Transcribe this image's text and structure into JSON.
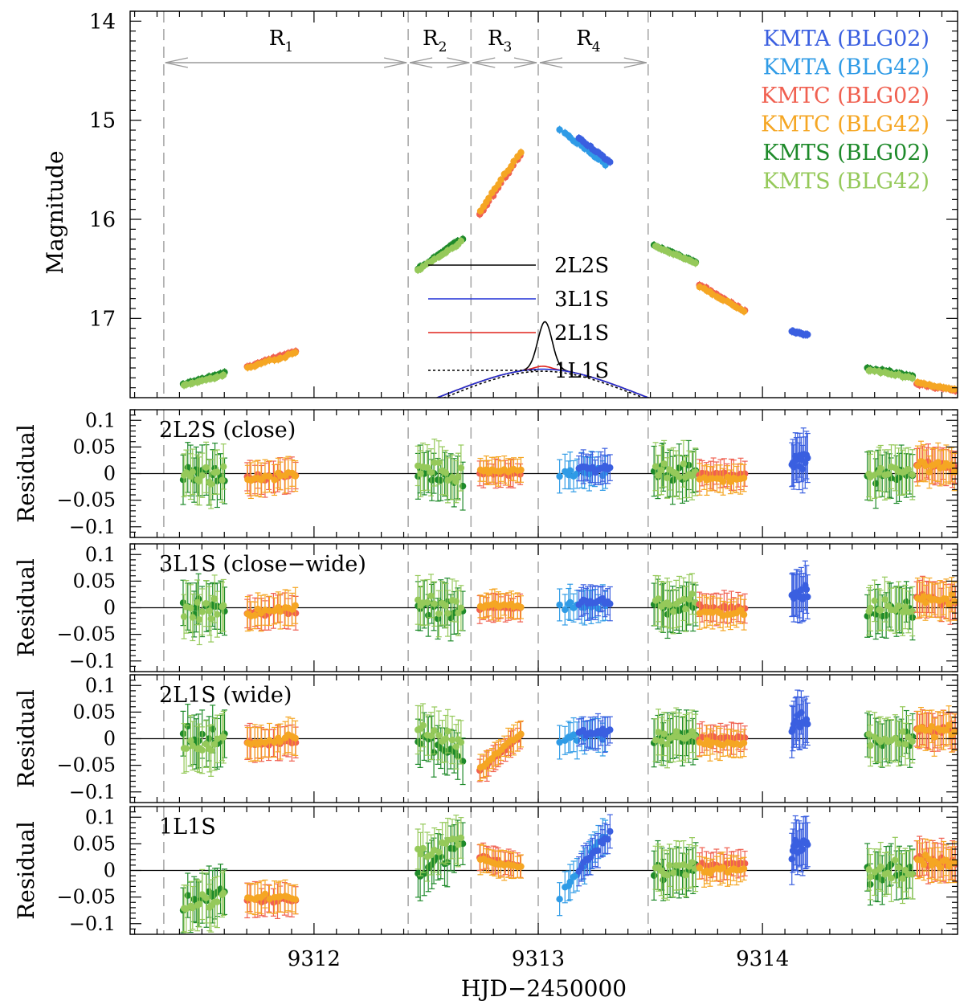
{
  "chart_data": {
    "type": "scatter",
    "xlabel": "HJD−2450000",
    "x_ticks": [
      "9312",
      "9313",
      "9314"
    ],
    "xlim": [
      9311.18,
      9314.87
    ],
    "top_panel": {
      "ylabel": "Magnitude",
      "ylim": [
        13.9,
        17.8
      ],
      "y_ticks": [
        "14",
        "15",
        "16",
        "17"
      ],
      "regions": [
        {
          "label": "R",
          "sub": "1",
          "start": 9311.33,
          "end": 9312.42
        },
        {
          "label": "R",
          "sub": "2",
          "start": 9312.42,
          "end": 9312.7
        },
        {
          "label": "R",
          "sub": "3",
          "start": 9312.7,
          "end": 9313.0
        },
        {
          "label": "R",
          "sub": "4",
          "start": 9313.0,
          "end": 9313.49
        }
      ],
      "boundaries": [
        9311.33,
        9312.42,
        9312.7,
        9313.0,
        9313.49
      ],
      "legend_datasets": [
        {
          "name": "KMTA (BLG02)",
          "color": "#3a5fe0"
        },
        {
          "name": "KMTA (BLG42)",
          "color": "#2f9be6"
        },
        {
          "name": "KMTC (BLG02)",
          "color": "#f06050"
        },
        {
          "name": "KMTC (BLG42)",
          "color": "#f5a623"
        },
        {
          "name": "KMTS (BLG02)",
          "color": "#1e8a2a"
        },
        {
          "name": "KMTS (BLG42)",
          "color": "#95c95a"
        }
      ],
      "models": [
        {
          "name": "2L2S",
          "color": "#000000",
          "dash": "solid"
        },
        {
          "name": "3L1S",
          "color": "#1f2fd6",
          "dash": "solid"
        },
        {
          "name": "2L1S",
          "color": "#e0241c",
          "dash": "solid"
        },
        {
          "name": "1L1S",
          "color": "#000000",
          "dash": "dotted"
        }
      ]
    },
    "residual_panels": [
      {
        "label": "2L2S (close)",
        "ylabel": "Residual",
        "ylim": [
          -0.12,
          0.12
        ],
        "y_ticks": [
          "0.1",
          "0.05",
          "0",
          "−0.05",
          "−0.1"
        ]
      },
      {
        "label": "3L1S (close−wide)",
        "ylabel": "Residual",
        "ylim": [
          -0.12,
          0.12
        ],
        "y_ticks": [
          "0.1",
          "0.05",
          "0",
          "−0.05",
          "−0.1"
        ]
      },
      {
        "label": "2L1S (wide)",
        "ylabel": "Residual",
        "ylim": [
          -0.12,
          0.12
        ],
        "y_ticks": [
          "0.1",
          "0.05",
          "0",
          "−0.05",
          "−0.1"
        ]
      },
      {
        "label": "1L1S",
        "ylabel": "Residual",
        "ylim": [
          -0.12,
          0.12
        ],
        "y_ticks": [
          "0.1",
          "0.05",
          "0",
          "−0.05",
          "−0.1"
        ]
      }
    ],
    "observation_groups": [
      {
        "dataset": 4,
        "x": [
          9311.42,
          9311.6
        ],
        "mag": [
          17.66,
          17.55
        ],
        "res": [
          0.0,
          0.0,
          0.0,
          -0.06
        ],
        "res_end": [
          0.0,
          0.0,
          0.0,
          -0.04
        ],
        "scatter": 0.026
      },
      {
        "dataset": 5,
        "x": [
          9311.42,
          9311.6
        ],
        "mag": [
          17.68,
          17.57
        ],
        "res": [
          -0.01,
          -0.01,
          -0.02,
          -0.07
        ],
        "res_end": [
          0.0,
          0.0,
          0.0,
          -0.05
        ],
        "scatter": 0.025
      },
      {
        "dataset": 2,
        "x": [
          9311.7,
          9311.92
        ],
        "mag": [
          17.49,
          17.33
        ],
        "res": [
          -0.01,
          -0.01,
          -0.01,
          -0.06
        ],
        "res_end": [
          -0.005,
          -0.005,
          -0.005,
          -0.055
        ],
        "scatter": 0.011
      },
      {
        "dataset": 3,
        "x": [
          9311.7,
          9311.92
        ],
        "mag": [
          17.5,
          17.35
        ],
        "res": [
          -0.01,
          -0.01,
          -0.01,
          -0.05
        ],
        "res_end": [
          0.0,
          0.0,
          0.0,
          -0.05
        ],
        "scatter": 0.011
      },
      {
        "dataset": 4,
        "x": [
          9312.46,
          9312.66
        ],
        "mag": [
          16.5,
          16.2
        ],
        "res": [
          0.0,
          0.0,
          0.0,
          -0.01
        ],
        "res_end": [
          -0.01,
          -0.01,
          -0.03,
          0.05
        ],
        "scatter": 0.022
      },
      {
        "dataset": 5,
        "x": [
          9312.46,
          9312.66
        ],
        "mag": [
          16.52,
          16.22
        ],
        "res": [
          0.01,
          0.01,
          0.02,
          0.03
        ],
        "res_end": [
          0.0,
          0.0,
          0.0,
          0.06
        ],
        "scatter": 0.022
      },
      {
        "dataset": 2,
        "x": [
          9312.74,
          9312.92
        ],
        "mag": [
          15.95,
          15.35
        ],
        "res": [
          0.0,
          0.0,
          -0.06,
          0.025
        ],
        "res_end": [
          0.0,
          0.0,
          0.005,
          0.008
        ],
        "scatter": 0.005
      },
      {
        "dataset": 3,
        "x": [
          9312.74,
          9312.92
        ],
        "mag": [
          15.92,
          15.32
        ],
        "res": [
          0.005,
          0.005,
          -0.055,
          0.02
        ],
        "res_end": [
          0.005,
          0.005,
          0.01,
          0.006
        ],
        "scatter": 0.006
      },
      {
        "dataset": 1,
        "x": [
          9313.1,
          9313.3
        ],
        "mag": [
          15.1,
          15.45
        ],
        "res": [
          0.0,
          0.0,
          0.0,
          -0.05
        ],
        "res_end": [
          0.005,
          0.005,
          0.005,
          0.07
        ],
        "scatter": 0.012
      },
      {
        "dataset": 0,
        "x": [
          9313.18,
          9313.32
        ],
        "mag": [
          15.18,
          15.42
        ],
        "res": [
          0.01,
          0.01,
          0.01,
          0.0
        ],
        "res_end": [
          0.01,
          0.01,
          0.01,
          0.07
        ],
        "scatter": 0.01
      },
      {
        "dataset": 4,
        "x": [
          9313.52,
          9313.7
        ],
        "mag": [
          16.26,
          16.43
        ],
        "res": [
          0.0,
          0.0,
          0.0,
          0.0
        ],
        "res_end": [
          0.0,
          0.0,
          0.0,
          0.0
        ],
        "scatter": 0.023
      },
      {
        "dataset": 5,
        "x": [
          9313.52,
          9313.7
        ],
        "mag": [
          16.27,
          16.44
        ],
        "res": [
          0.005,
          0.005,
          0.005,
          0.005
        ],
        "res_end": [
          0.005,
          0.005,
          0.005,
          0.005
        ],
        "scatter": 0.023
      },
      {
        "dataset": 2,
        "x": [
          9313.72,
          9313.92
        ],
        "mag": [
          16.66,
          16.92
        ],
        "res": [
          0.0,
          0.0,
          0.0,
          0.01
        ],
        "res_end": [
          0.0,
          0.0,
          0.0,
          0.01
        ],
        "scatter": 0.008
      },
      {
        "dataset": 3,
        "x": [
          9313.72,
          9313.92
        ],
        "mag": [
          16.68,
          16.93
        ],
        "res": [
          -0.01,
          -0.01,
          -0.01,
          0.0
        ],
        "res_end": [
          -0.01,
          -0.01,
          -0.01,
          0.0
        ],
        "scatter": 0.008
      },
      {
        "dataset": 0,
        "x": [
          9314.13,
          9314.2
        ],
        "mag": [
          17.13,
          17.17
        ],
        "res": [
          0.02,
          0.02,
          0.025,
          0.04
        ],
        "res_end": [
          0.03,
          0.03,
          0.035,
          0.055
        ],
        "scatter": 0.025
      },
      {
        "dataset": 4,
        "x": [
          9314.47,
          9314.67
        ],
        "mag": [
          17.5,
          17.58
        ],
        "res": [
          -0.01,
          -0.01,
          -0.01,
          -0.01
        ],
        "res_end": [
          0.0,
          0.0,
          0.0,
          0.0
        ],
        "scatter": 0.023
      },
      {
        "dataset": 5,
        "x": [
          9314.47,
          9314.67
        ],
        "mag": [
          17.52,
          17.6
        ],
        "res": [
          0.0,
          0.0,
          0.0,
          0.0
        ],
        "res_end": [
          0.0,
          0.0,
          0.0,
          0.0
        ],
        "scatter": 0.023
      },
      {
        "dataset": 2,
        "x": [
          9314.69,
          9314.86
        ],
        "mag": [
          17.66,
          17.73
        ],
        "res": [
          0.02,
          0.02,
          0.02,
          0.02
        ],
        "res_end": [
          0.01,
          0.01,
          0.01,
          0.01
        ],
        "scatter": 0.015
      },
      {
        "dataset": 3,
        "x": [
          9314.69,
          9314.86
        ],
        "mag": [
          17.65,
          17.72
        ],
        "res": [
          0.02,
          0.02,
          0.02,
          0.02
        ],
        "res_end": [
          0.01,
          0.01,
          0.01,
          0.01
        ],
        "scatter": 0.015
      }
    ]
  }
}
